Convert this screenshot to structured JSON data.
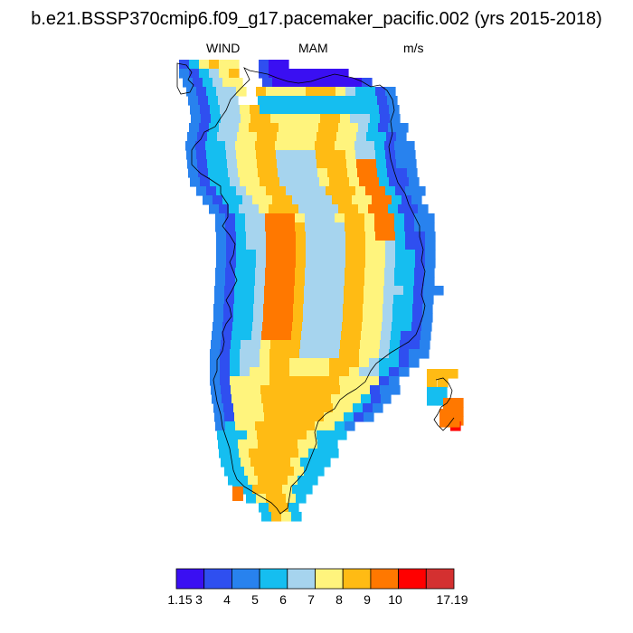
{
  "title": "b.e21.BSSP370cmip6.f09_g17.pacemaker_pacific.002 (yrs 2015-2018)",
  "subtitle": {
    "variable": "WIND",
    "season": "MAM",
    "units": "m/s"
  },
  "legend": {
    "labels": [
      "1.15",
      "3",
      "4",
      "5",
      "6",
      "7",
      "8",
      "9",
      "10",
      "17.19"
    ],
    "colors": [
      "#3a0ff2",
      "#2f4ff0",
      "#2882ee",
      "#15bef0",
      "#a6d4ee",
      "#fff47d",
      "#ffbb14",
      "#ff7800",
      "#ff0000",
      "#d43030"
    ]
  },
  "map_colors": {
    "coastline": "#000000",
    "missing": "#ffffff"
  }
}
